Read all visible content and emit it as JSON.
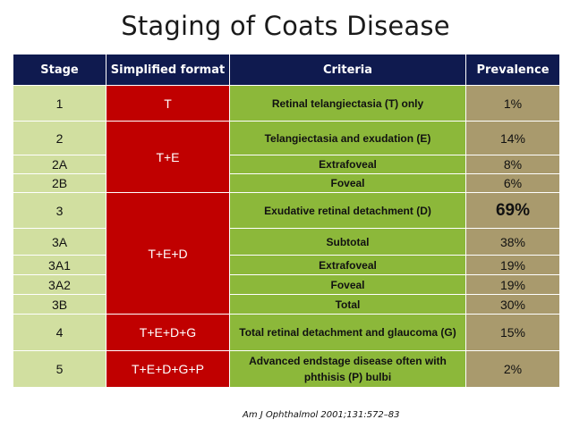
{
  "title": "Staging of Coats Disease",
  "table": {
    "headers": {
      "stage": "Stage",
      "format": "Simplified format",
      "criteria": "Criteria",
      "prevalence": "Prevalence"
    },
    "rows": [
      {
        "stage": "1",
        "format": "T",
        "criteria": "Retinal telangiectasia (T) only",
        "prevalence": "1%"
      },
      {
        "stage": "2",
        "format": "T+E",
        "criteria": "Telangiectasia and exudation (E)",
        "prevalence": "14%"
      },
      {
        "stage": "2A",
        "criteria": "Extrafoveal",
        "prevalence": "8%"
      },
      {
        "stage": "2B",
        "criteria": "Foveal",
        "prevalence": "6%"
      },
      {
        "stage": "3",
        "format": "T+E+D",
        "criteria": "Exudative retinal detachment (D)",
        "prevalence": "69%"
      },
      {
        "stage": "3A",
        "criteria": "Subtotal",
        "prevalence": "38%"
      },
      {
        "stage": "3A1",
        "criteria": "Extrafoveal",
        "prevalence": "19%"
      },
      {
        "stage": "3A2",
        "criteria": "Foveal",
        "prevalence": "19%"
      },
      {
        "stage": "3B",
        "criteria": "Total",
        "prevalence": "30%"
      },
      {
        "stage": "4",
        "format": "T+E+D+G",
        "criteria": "Total retinal detachment and glaucoma (G)",
        "prevalence": "15%"
      },
      {
        "stage": "5",
        "format": "T+E+D+G+P",
        "criteria": "Advanced endstage disease often with phthisis (P) bulbi",
        "prevalence": "2%"
      }
    ]
  },
  "colors": {
    "header": "#0f1a4f",
    "stage": "#d1dfa0",
    "format": "#c00000",
    "criteria": "#8cb83a",
    "prevalence": "#a99a6d"
  },
  "citation": "Am J Ophthalmol 2001;131:572–83"
}
